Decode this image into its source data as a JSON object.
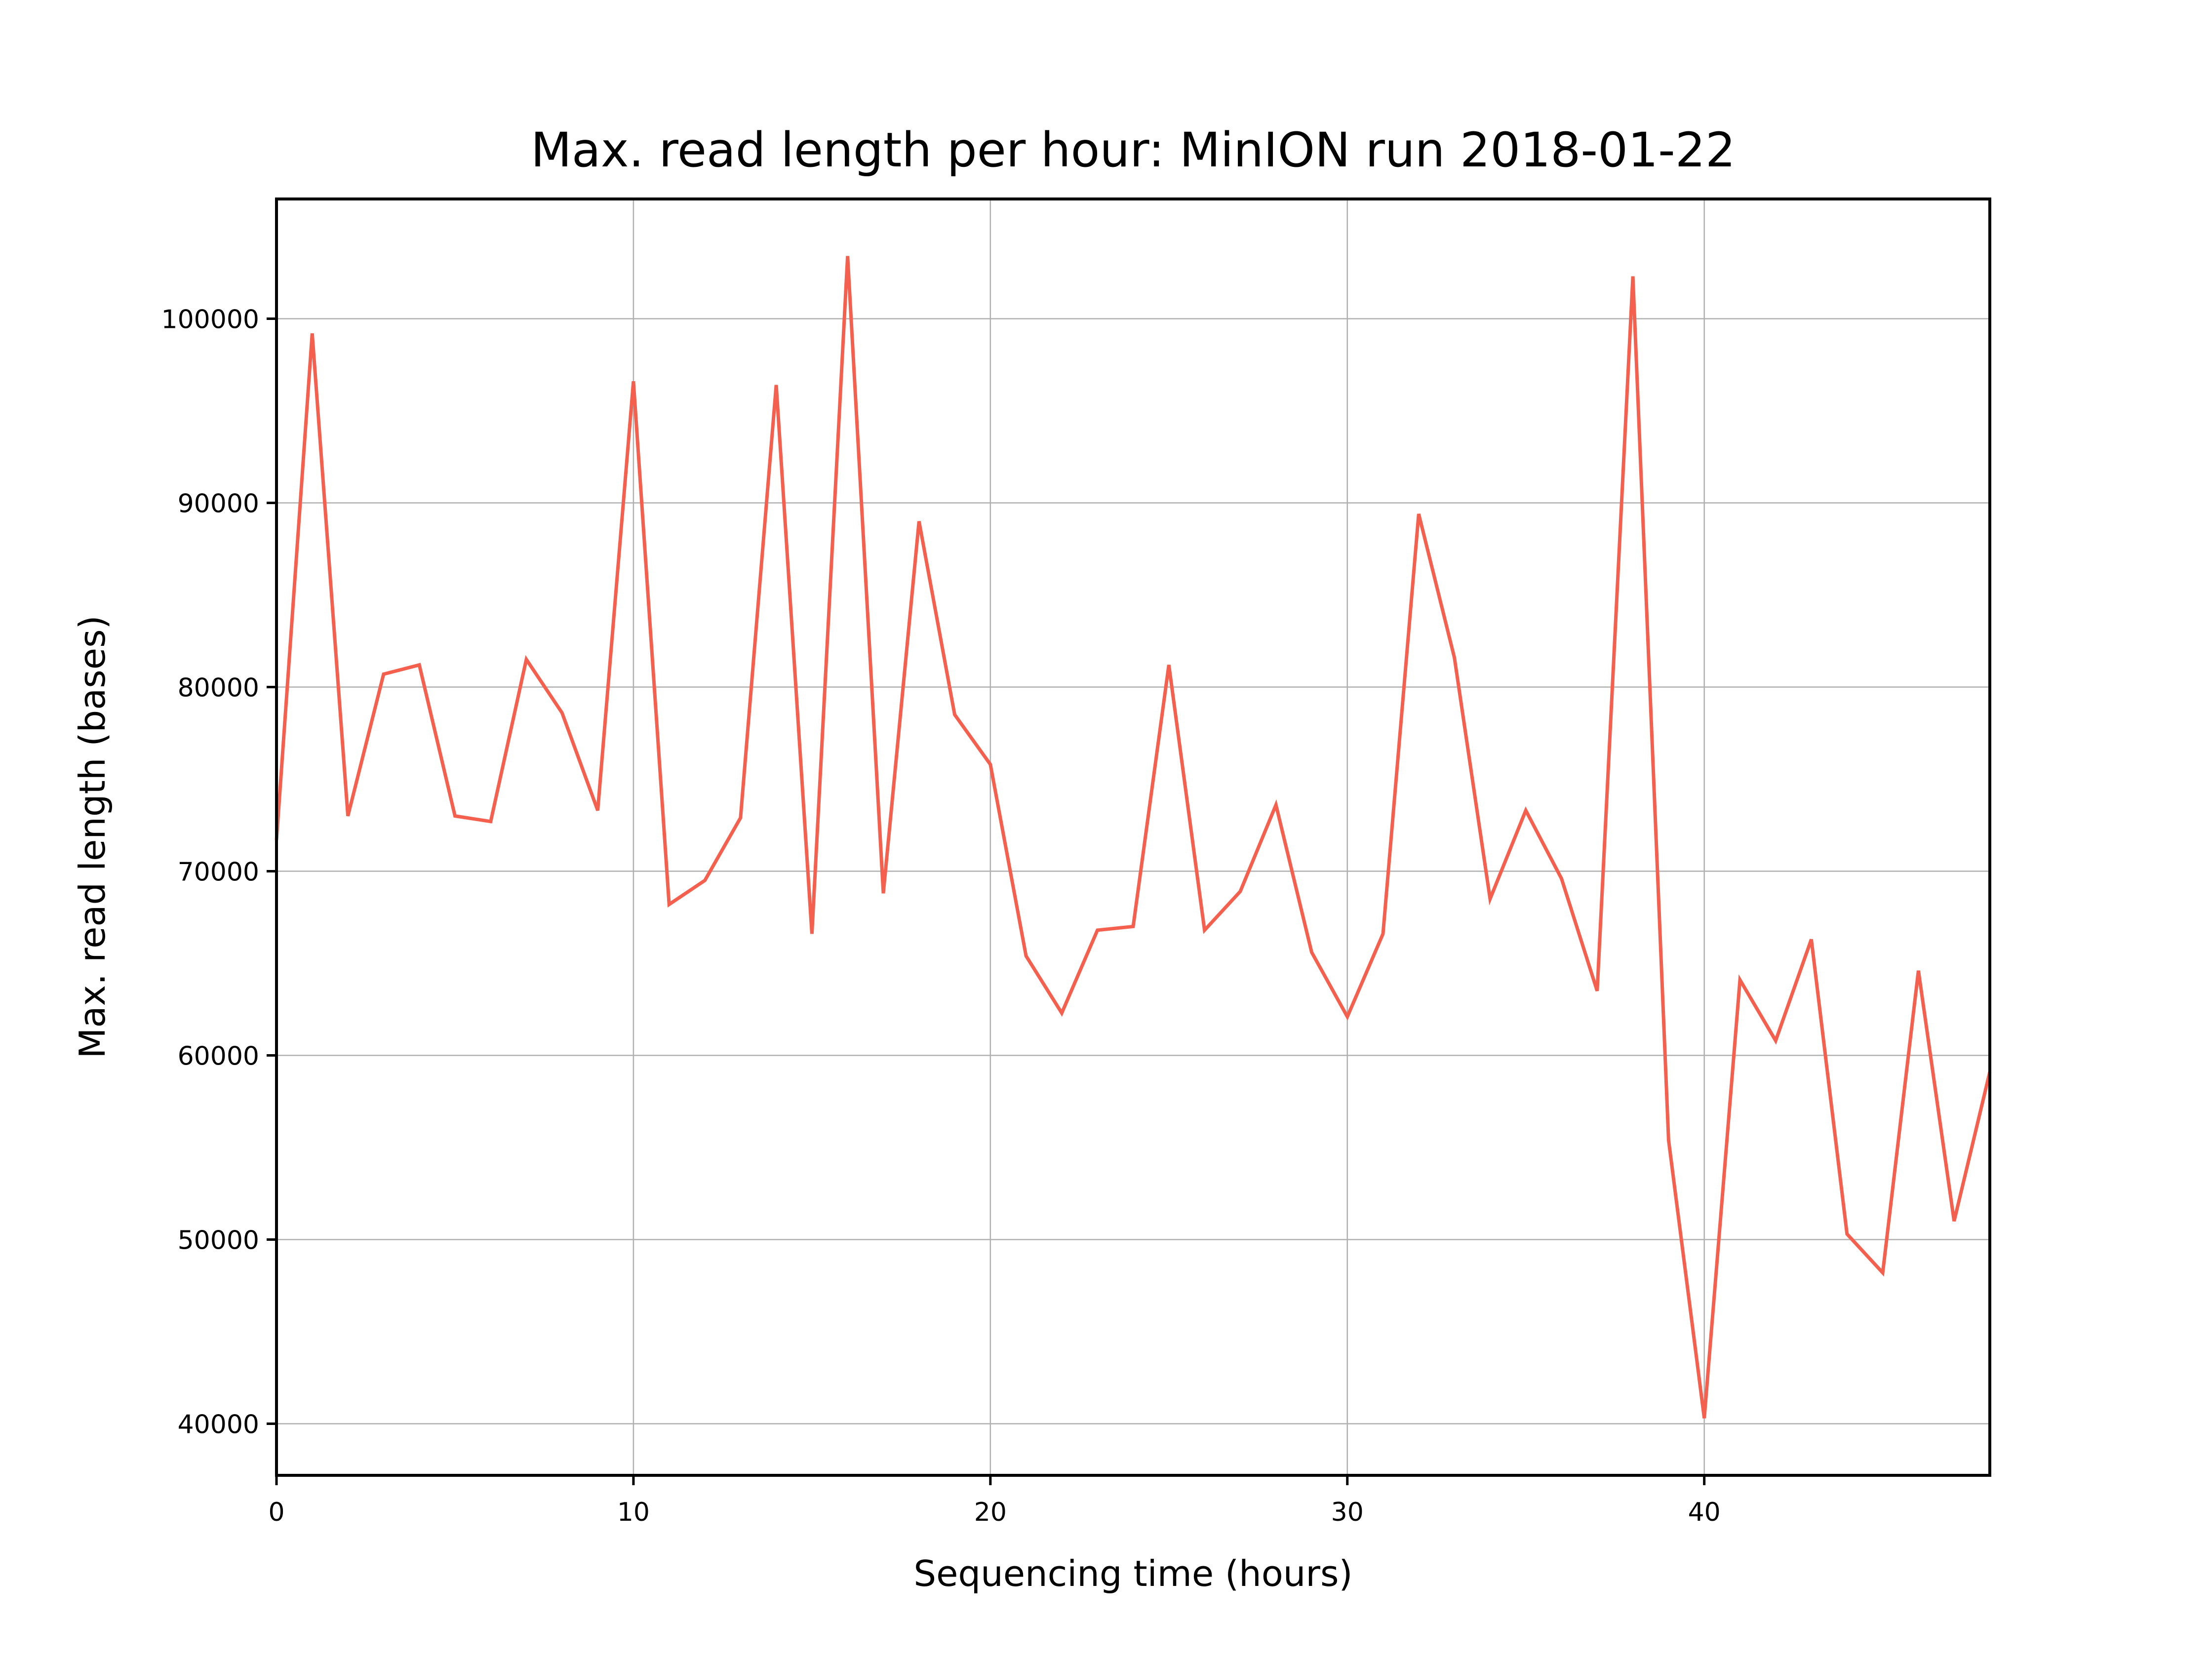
{
  "chart_data": {
    "type": "line",
    "title": "Max. read length per hour: MinION run 2018-01-22",
    "xlabel": "Sequencing time (hours)",
    "ylabel": "Max. read length (bases)",
    "xlim": [
      0,
      48
    ],
    "ylim": [
      37200,
      106500
    ],
    "xticks": [
      0,
      10,
      20,
      30,
      40
    ],
    "yticks": [
      40000,
      50000,
      60000,
      70000,
      80000,
      90000,
      100000
    ],
    "grid": true,
    "line_color": "#f4604d",
    "series": [
      {
        "x": [
          0,
          1,
          2,
          3,
          4,
          5,
          6,
          7,
          8,
          9,
          10,
          11,
          12,
          13,
          14,
          15,
          16,
          17,
          18,
          19,
          20,
          21,
          22,
          23,
          24,
          25,
          26,
          27,
          28,
          29,
          30,
          31,
          32,
          33,
          34,
          35,
          36,
          37,
          38,
          39,
          40,
          41,
          42,
          43,
          44,
          45,
          46,
          47,
          48
        ],
        "values": [
          71700,
          99200,
          73000,
          80700,
          81200,
          73000,
          72700,
          81500,
          78600,
          73300,
          96600,
          68200,
          69500,
          72900,
          96400,
          66600,
          103400,
          68800,
          89000,
          78500,
          75800,
          65400,
          62300,
          66800,
          67000,
          81200,
          66800,
          68900,
          73600,
          65600,
          62100,
          66600,
          89400,
          81600,
          68500,
          73300,
          69600,
          63500,
          102300,
          55400,
          40300,
          64100,
          60800,
          66300,
          50300,
          48200,
          64600,
          51000,
          59100
        ]
      }
    ]
  }
}
